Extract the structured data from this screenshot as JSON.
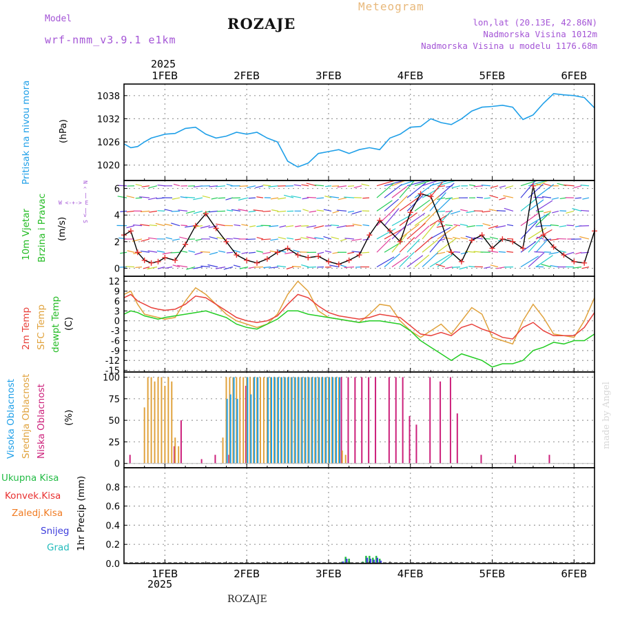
{
  "header": {
    "model_label": "Model",
    "model_name": "wrf-nmm_v3.9.1  e1km",
    "title": "ROZAJE",
    "meteogram_label": "Meteogram",
    "lonlat": "lon,lat (20.13E, 42.86N)",
    "elevation": "Nadmorska Visina 1012m",
    "model_elevation": "Nadmorska Visina u modelu 1176.68m",
    "watermark": "made by Angel",
    "footer_station": "ROZAJE",
    "year_top": "2025",
    "year_bottom": "2025"
  },
  "panel_labels": {
    "pressure": [
      "Pritisak na nivou mora",
      "(hPa)"
    ],
    "wind": [
      "10m Vjetar",
      "Brzina i Pravac",
      "(m/s)"
    ],
    "wind_compass": [
      "N",
      "^",
      "|",
      "W <-+-> E",
      "|",
      "v",
      "S"
    ],
    "temp": [
      "2m Temp",
      "SFC Temp",
      "dewpt Temp",
      "(C)"
    ],
    "cloud": [
      "Visoka Oblacnost",
      "Srednja Oblacnost",
      "Niska Oblacnost",
      "(%)"
    ],
    "precip_axis": "1hr Precip (mm)",
    "precip_legend": [
      "Ukupna Kisa",
      "Konvek.Kisa",
      "Zaledj.Kisa",
      "Snijeg",
      "Grad"
    ]
  },
  "colors": {
    "pressure": "#1e9fe8",
    "wind_line": "#000000",
    "wind_marker": "#e83030",
    "t2m": "#e8403a",
    "tsfc": "#e0a23c",
    "dewpt": "#22cc22",
    "cloud_high": "#1e9fe8",
    "cloud_mid": "#e0a23c",
    "cloud_low": "#cc1f7a",
    "precip_total": "#22bb44",
    "precip_conv": "#e83030",
    "precip_frz": "#f07a20",
    "precip_snow": "#3c3cdc",
    "precip_hail": "#22bbbb",
    "title_purple": "#a455d6"
  },
  "chart_data": [
    {
      "type": "line",
      "title": "",
      "ylabel": "Pritisak na nivou mora (hPa)",
      "x_ticks": [
        "1FEB",
        "2FEB",
        "3FEB",
        "4FEB",
        "5FEB",
        "6FEB"
      ],
      "xlim_hours": [
        -12,
        126
      ],
      "ylim": [
        1016,
        1041
      ],
      "yticks": [
        1020,
        1026,
        1032,
        1038
      ],
      "grid": true,
      "series": [
        {
          "name": "Pritisak na nivou mora",
          "x_hours": [
            -12,
            -10,
            -8,
            -6,
            -4,
            -2,
            0,
            3,
            6,
            9,
            12,
            15,
            18,
            21,
            24,
            27,
            30,
            33,
            36,
            39,
            42,
            45,
            48,
            51,
            54,
            57,
            60,
            63,
            66,
            69,
            72,
            75,
            78,
            81,
            84,
            87,
            90,
            93,
            96,
            99,
            102,
            105,
            108,
            111,
            114,
            117,
            120,
            123,
            126
          ],
          "values": [
            1025.5,
            1024.5,
            1024.8,
            1026,
            1027,
            1027.5,
            1028,
            1028.2,
            1029.5,
            1029.8,
            1028,
            1027,
            1027.5,
            1028.5,
            1028,
            1028.5,
            1027,
            1026,
            1021,
            1019.5,
            1020.5,
            1023,
            1023.5,
            1024,
            1023,
            1024,
            1024.5,
            1024,
            1027,
            1028,
            1029.8,
            1030,
            1032,
            1031,
            1030.5,
            1032,
            1034,
            1035,
            1035.2,
            1035.5,
            1035,
            1031.8,
            1033,
            1036,
            1038.5,
            1038.2,
            1038,
            1037.5,
            1034.8
          ]
        }
      ]
    },
    {
      "type": "line",
      "title": "",
      "ylabel": "10m Vjetar Brzina i Pravac (m/s)",
      "xlim_hours": [
        -12,
        126
      ],
      "ylim": [
        -0.6,
        6.6
      ],
      "yticks": [
        0,
        2,
        4,
        6
      ],
      "grid": true,
      "series": [
        {
          "name": "10m Vjetar",
          "x_hours": [
            -12,
            -10,
            -8,
            -6,
            -4,
            -2,
            0,
            3,
            6,
            9,
            12,
            15,
            18,
            21,
            24,
            27,
            30,
            33,
            36,
            39,
            42,
            45,
            48,
            51,
            54,
            57,
            60,
            63,
            66,
            69,
            72,
            75,
            78,
            81,
            84,
            87,
            90,
            93,
            96,
            99,
            102,
            105,
            108,
            111,
            114,
            117,
            120,
            123,
            126
          ],
          "values": [
            2.5,
            2.8,
            1.2,
            0.6,
            0.4,
            0.5,
            0.8,
            0.6,
            1.8,
            3.2,
            4.1,
            3.0,
            2.0,
            1.0,
            0.6,
            0.4,
            0.7,
            1.2,
            1.5,
            1.0,
            0.8,
            0.9,
            0.5,
            0.3,
            0.6,
            1.0,
            2.5,
            3.6,
            2.8,
            2.0,
            4.2,
            5.6,
            5.4,
            3.5,
            1.2,
            0.5,
            2.1,
            2.5,
            1.5,
            2.2,
            2.0,
            1.5,
            6.2,
            2.5,
            1.6,
            1.0,
            0.5,
            0.4,
            2.8
          ]
        }
      ]
    },
    {
      "type": "line",
      "title": "",
      "ylabel": "(C)",
      "xlim_hours": [
        -12,
        126
      ],
      "ylim": [
        -15.5,
        13.5
      ],
      "yticks": [
        12,
        9,
        6,
        3,
        0,
        -3,
        -6,
        -9,
        -12,
        -15
      ],
      "grid": true,
      "series": [
        {
          "name": "2m Temp",
          "x_hours": [
            -12,
            -10,
            -8,
            -6,
            -4,
            -2,
            0,
            3,
            6,
            9,
            12,
            15,
            18,
            21,
            24,
            27,
            30,
            33,
            36,
            39,
            42,
            45,
            48,
            51,
            54,
            57,
            60,
            63,
            66,
            69,
            72,
            75,
            78,
            81,
            84,
            87,
            90,
            93,
            96,
            99,
            102,
            105,
            108,
            111,
            114,
            117,
            120,
            123,
            126
          ],
          "values": [
            7,
            8,
            6,
            5,
            4,
            3.5,
            3.2,
            3.5,
            5,
            7.5,
            7,
            5,
            3,
            1,
            0,
            -0.5,
            0,
            1.5,
            5,
            8,
            7,
            4.5,
            2.5,
            1.5,
            1,
            0.5,
            1,
            2,
            1.5,
            1,
            -1.5,
            -4,
            -4.5,
            -3.5,
            -4.5,
            -2,
            -1,
            -2.5,
            -3.5,
            -5,
            -5.5,
            -2,
            -0.5,
            -3,
            -4.5,
            -4.5,
            -4.5,
            -2,
            2.5
          ]
        },
        {
          "name": "SFC Temp",
          "x_hours": [
            -12,
            -10,
            -8,
            -6,
            -4,
            -2,
            0,
            3,
            6,
            9,
            12,
            15,
            18,
            21,
            24,
            27,
            30,
            33,
            36,
            39,
            42,
            45,
            48,
            51,
            54,
            57,
            60,
            63,
            66,
            69,
            72,
            75,
            78,
            81,
            84,
            87,
            90,
            93,
            96,
            99,
            102,
            105,
            108,
            111,
            114,
            117,
            120,
            123,
            126
          ],
          "values": [
            8,
            9,
            5,
            2,
            1.5,
            1,
            0.5,
            1,
            6,
            10,
            8,
            5,
            2,
            0,
            -1,
            -2,
            -1,
            2,
            8,
            12,
            9,
            3,
            1,
            0.5,
            0,
            -0.5,
            2,
            5,
            4.5,
            0,
            -3,
            -5,
            -3,
            -1,
            -4,
            0,
            4,
            2,
            -5,
            -6,
            -7,
            0,
            5,
            1,
            -4,
            -4.5,
            -5,
            0,
            7
          ]
        },
        {
          "name": "dewpt Temp",
          "x_hours": [
            -12,
            -10,
            -8,
            -6,
            -4,
            -2,
            0,
            3,
            6,
            9,
            12,
            15,
            18,
            21,
            24,
            27,
            30,
            33,
            36,
            39,
            42,
            45,
            48,
            51,
            54,
            57,
            60,
            63,
            66,
            69,
            72,
            75,
            78,
            81,
            84,
            87,
            90,
            93,
            96,
            99,
            102,
            105,
            108,
            111,
            114,
            117,
            120,
            123,
            126
          ],
          "values": [
            2,
            3,
            2.5,
            1.5,
            1,
            0.5,
            1,
            1.5,
            2,
            2.5,
            3,
            2,
            1,
            -1,
            -2,
            -2.5,
            -1,
            0.5,
            3,
            3,
            2,
            1.5,
            1,
            0.5,
            0,
            -0.5,
            0,
            0,
            -0.5,
            -1,
            -3,
            -6,
            -8,
            -10,
            -12,
            -10,
            -11,
            -12,
            -14,
            -13,
            -13,
            -12,
            -9,
            -8,
            -6.5,
            -7,
            -6,
            -6,
            -4
          ]
        }
      ]
    },
    {
      "type": "bar",
      "title": "",
      "ylabel": "(%)",
      "xlim_hours": [
        -12,
        126
      ],
      "ylim": [
        -5,
        106
      ],
      "yticks": [
        0,
        25,
        50,
        75,
        100
      ],
      "grid": true,
      "series": [
        {
          "name": "Niska Oblacnost",
          "x_hours": [
            -10,
            3,
            5,
            11,
            15,
            19,
            24,
            52,
            54,
            56,
            58,
            60,
            62,
            66,
            68,
            70,
            72,
            74,
            78,
            81,
            84,
            86,
            93,
            103,
            113
          ],
          "values": [
            10,
            20,
            50,
            5,
            10,
            10,
            90,
            100,
            100,
            100,
            100,
            100,
            100,
            100,
            100,
            100,
            55,
            45,
            100,
            95,
            100,
            58,
            10,
            10,
            10
          ]
        },
        {
          "name": "Srednja Oblacnost",
          "x_hours": [
            -6,
            -5,
            -4,
            -3,
            -2,
            -1,
            0,
            1,
            2,
            3,
            4,
            17,
            18,
            19,
            20,
            21,
            22,
            23,
            24,
            25,
            26,
            27,
            28,
            29,
            30,
            31,
            32,
            33,
            34,
            35,
            36,
            37,
            38,
            39,
            40,
            41,
            42,
            43,
            44,
            45,
            46,
            47,
            48,
            49,
            50,
            51,
            52,
            53
          ],
          "values": [
            65,
            100,
            100,
            95,
            100,
            100,
            90,
            100,
            95,
            30,
            20,
            30,
            100,
            100,
            100,
            100,
            100,
            100,
            100,
            100,
            100,
            100,
            100,
            100,
            100,
            100,
            100,
            100,
            100,
            100,
            100,
            100,
            100,
            100,
            100,
            100,
            100,
            100,
            100,
            100,
            100,
            100,
            100,
            100,
            100,
            100,
            15,
            10
          ]
        },
        {
          "name": "Visoka Oblacnost",
          "x_hours": [
            18,
            19,
            20,
            21,
            24,
            25,
            26,
            27,
            30,
            31,
            32,
            33,
            34,
            35,
            36,
            37,
            38,
            39,
            40,
            41,
            42,
            43,
            44,
            45,
            46,
            47,
            48,
            49,
            50,
            51
          ],
          "values": [
            75,
            80,
            100,
            75,
            100,
            80,
            100,
            100,
            100,
            100,
            100,
            100,
            100,
            100,
            100,
            100,
            100,
            100,
            100,
            100,
            100,
            100,
            100,
            100,
            100,
            100,
            100,
            100,
            100,
            100
          ]
        }
      ]
    },
    {
      "type": "bar",
      "title": "",
      "ylabel": "1hr Precip (mm)",
      "xlim_hours": [
        -12,
        126
      ],
      "ylim": [
        0,
        1.0
      ],
      "yticks": [
        0,
        0.2,
        0.4,
        0.6,
        0.8
      ],
      "grid": true,
      "series": [
        {
          "name": "Ukupna Kisa",
          "x_hours": [
            52,
            53,
            54,
            58,
            59,
            60,
            61,
            62,
            63
          ],
          "values": [
            0.02,
            0.07,
            0.05,
            0.02,
            0.08,
            0.08,
            0.06,
            0.08,
            0.05
          ]
        },
        {
          "name": "Snijeg",
          "x_hours": [
            52,
            53,
            59,
            60,
            61,
            62,
            63
          ],
          "values": [
            0.02,
            0.05,
            0.06,
            0.05,
            0.04,
            0.06,
            0.03
          ]
        }
      ]
    }
  ]
}
